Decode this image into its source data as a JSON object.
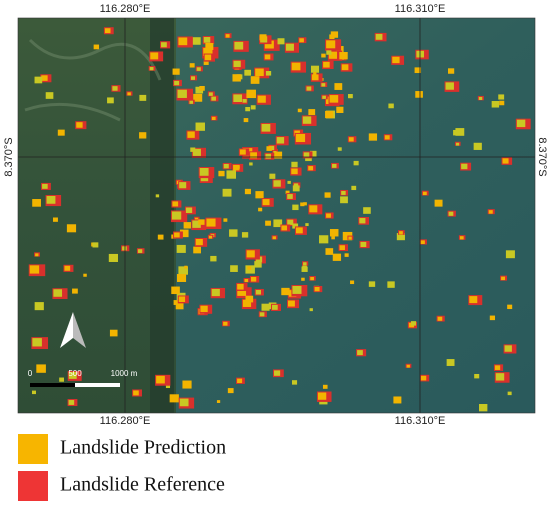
{
  "map": {
    "top_labels": [
      "116.280°E",
      "116.310°E"
    ],
    "bottom_labels": [
      "116.280°E",
      "116.310°E"
    ],
    "left_label": "8.370°S",
    "right_label": "8.370°S",
    "scale_bar": {
      "labels": [
        "0",
        "500",
        "1000 m"
      ]
    }
  },
  "legend": {
    "items": [
      {
        "label": "Landslide Prediction"
      },
      {
        "label": "Landslide Reference"
      }
    ]
  }
}
